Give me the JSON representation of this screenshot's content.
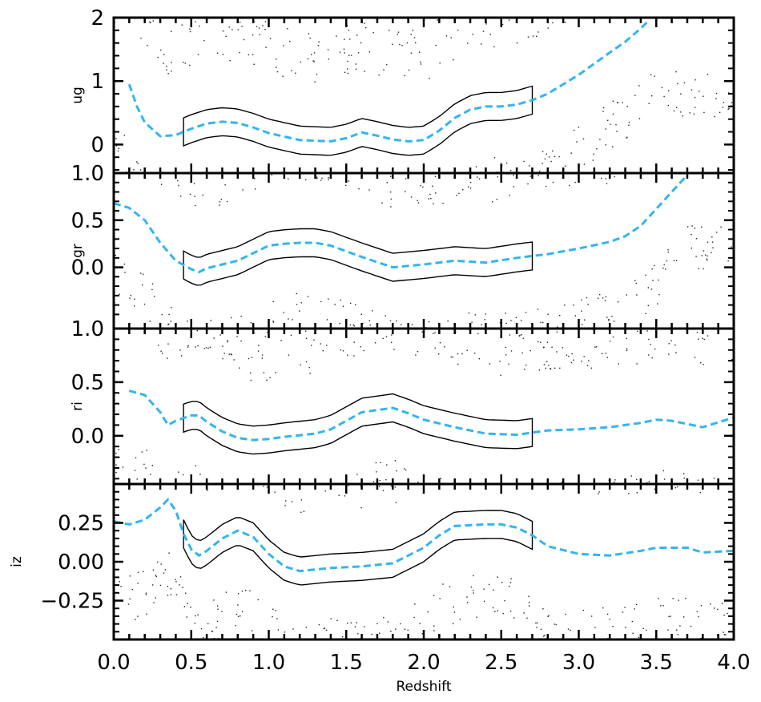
{
  "figure": {
    "xlabel": "Redshift",
    "xticks": [
      0.0,
      0.5,
      1.0,
      1.5,
      2.0,
      2.5,
      3.0,
      3.5,
      4.0
    ],
    "xtick_labels": [
      "0.0",
      "0.5",
      "1.0",
      "1.5",
      "2.0",
      "2.5",
      "3.0",
      "3.5",
      "4.0"
    ],
    "xlim": [
      0.0,
      4.0
    ],
    "colors": {
      "median_line": "#33b5ee",
      "contour": "#000000",
      "points": "#222222",
      "axes": "#000000"
    }
  },
  "chart_data": [
    {
      "type": "line",
      "ylabel": "ug",
      "ylim": [
        -0.45,
        2.0
      ],
      "yticks": [
        0,
        1,
        2
      ],
      "ytick_labels": [
        "0",
        "1",
        "2"
      ],
      "series": [
        {
          "style": "dashed",
          "x": [
            0.1,
            0.15,
            0.2,
            0.3,
            0.4,
            0.5,
            0.6,
            0.7,
            0.8,
            0.9,
            1.0,
            1.2,
            1.4,
            1.5,
            1.6,
            1.7,
            1.8,
            1.9,
            2.0,
            2.1,
            2.2,
            2.3,
            2.4,
            2.5,
            2.6,
            2.7,
            2.8,
            3.0,
            3.2,
            3.3,
            3.4,
            3.45
          ],
          "y": [
            0.95,
            0.6,
            0.35,
            0.13,
            0.15,
            0.25,
            0.33,
            0.36,
            0.34,
            0.27,
            0.18,
            0.07,
            0.05,
            0.1,
            0.19,
            0.14,
            0.08,
            0.05,
            0.07,
            0.22,
            0.42,
            0.55,
            0.6,
            0.6,
            0.63,
            0.7,
            0.8,
            1.1,
            1.45,
            1.62,
            1.83,
            1.95
          ]
        }
      ]
    },
    {
      "type": "line",
      "ylabel": "gr",
      "ylim": [
        -0.65,
        1.0
      ],
      "yticks": [
        0.0,
        0.5,
        1.0
      ],
      "ytick_labels": [
        "0.0",
        "0.5",
        "1.0"
      ],
      "series": [
        {
          "style": "dashed",
          "x": [
            0.0,
            0.1,
            0.2,
            0.3,
            0.4,
            0.5,
            0.55,
            0.6,
            0.7,
            0.8,
            0.9,
            1.0,
            1.1,
            1.2,
            1.3,
            1.4,
            1.6,
            1.8,
            2.0,
            2.2,
            2.4,
            2.6,
            2.8,
            3.0,
            3.2,
            3.3,
            3.4,
            3.5,
            3.6,
            3.7
          ],
          "y": [
            0.68,
            0.63,
            0.5,
            0.26,
            0.07,
            -0.02,
            -0.05,
            -0.01,
            0.03,
            0.07,
            0.15,
            0.23,
            0.25,
            0.26,
            0.26,
            0.23,
            0.11,
            0.0,
            0.03,
            0.07,
            0.05,
            0.1,
            0.14,
            0.2,
            0.27,
            0.33,
            0.44,
            0.62,
            0.8,
            0.98
          ]
        }
      ]
    },
    {
      "type": "line",
      "ylabel": "ri",
      "ylim": [
        -0.45,
        1.0
      ],
      "yticks": [
        0.0,
        0.5,
        1.0
      ],
      "ytick_labels": [
        "0.0",
        "0.5",
        "1.0"
      ],
      "series": [
        {
          "style": "dashed",
          "x": [
            0.1,
            0.2,
            0.3,
            0.35,
            0.4,
            0.5,
            0.55,
            0.6,
            0.7,
            0.8,
            0.9,
            1.0,
            1.1,
            1.3,
            1.4,
            1.5,
            1.6,
            1.8,
            1.9,
            2.0,
            2.2,
            2.4,
            2.6,
            2.7,
            2.8,
            3.0,
            3.2,
            3.4,
            3.5,
            3.6,
            3.7,
            3.8,
            4.0
          ],
          "y": [
            0.42,
            0.38,
            0.22,
            0.1,
            0.14,
            0.19,
            0.19,
            0.13,
            0.04,
            -0.02,
            -0.04,
            -0.03,
            -0.01,
            0.02,
            0.06,
            0.14,
            0.22,
            0.26,
            0.21,
            0.15,
            0.08,
            0.02,
            0.01,
            0.03,
            0.05,
            0.06,
            0.08,
            0.12,
            0.15,
            0.14,
            0.11,
            0.08,
            0.17
          ]
        }
      ]
    },
    {
      "type": "line",
      "ylabel": "iz",
      "ylim": [
        -0.5,
        0.5
      ],
      "yticks": [
        -0.25,
        0.0,
        0.25
      ],
      "ytick_labels": [
        "−0.25",
        "0.00",
        "0.25"
      ],
      "series": [
        {
          "style": "dashed",
          "x": [
            0.0,
            0.1,
            0.2,
            0.3,
            0.35,
            0.4,
            0.45,
            0.5,
            0.55,
            0.6,
            0.7,
            0.8,
            0.9,
            1.0,
            1.1,
            1.2,
            1.4,
            1.6,
            1.8,
            2.0,
            2.1,
            2.2,
            2.4,
            2.5,
            2.6,
            2.7,
            2.8,
            3.0,
            3.2,
            3.4,
            3.5,
            3.7,
            3.8,
            4.0
          ],
          "y": [
            0.26,
            0.24,
            0.27,
            0.35,
            0.4,
            0.33,
            0.18,
            0.08,
            0.04,
            0.07,
            0.15,
            0.2,
            0.16,
            0.05,
            -0.03,
            -0.06,
            -0.04,
            -0.03,
            -0.01,
            0.09,
            0.17,
            0.23,
            0.24,
            0.24,
            0.22,
            0.17,
            0.1,
            0.05,
            0.04,
            0.07,
            0.09,
            0.09,
            0.06,
            0.07
          ]
        }
      ]
    }
  ]
}
